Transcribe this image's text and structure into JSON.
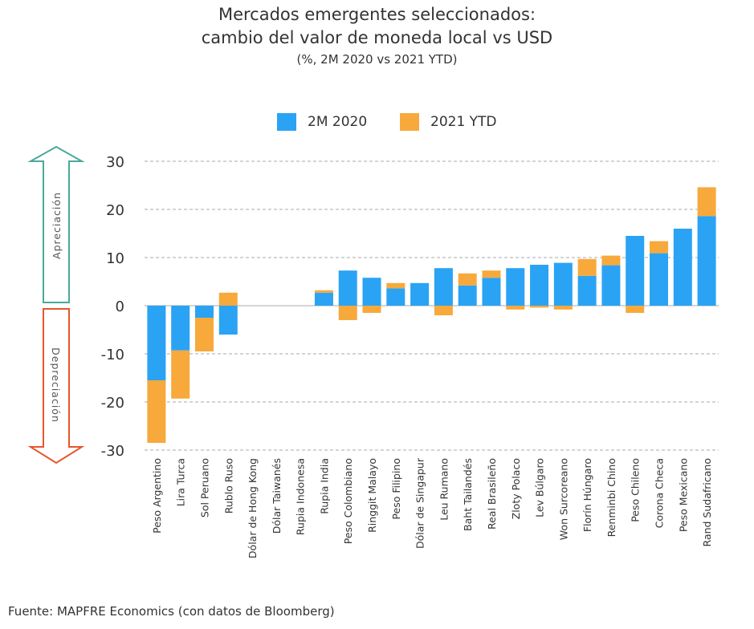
{
  "title": {
    "line1": "Mercados emergentes seleccionados:",
    "line2": "cambio del valor de moneda local vs USD",
    "line3": "(%, 2M 2020 vs 2021 YTD)"
  },
  "source": "Fuente: MAPFRE Economics (con datos de Bloomberg)",
  "arrows": {
    "up_label": "Apreciación",
    "down_label": "Depreciación",
    "up_color": "#4aa99a",
    "down_color": "#e8552b"
  },
  "chart_data": {
    "type": "bar",
    "stacked": true,
    "categories": [
      "Peso Argentino",
      "Lira Turca",
      "Sol Peruano",
      "Rublo Ruso",
      "Dólar de Hong Kong",
      "Dólar Taiwanés",
      "Rupia Indonesa",
      "Rupia India",
      "Peso Colombiano",
      "Ringgit Malayo",
      "Peso Filipino",
      "Dólar de Singapur",
      "Leu Rumano",
      "Baht Tailandés",
      "Real Brasileño",
      "Zloty Polaco",
      "Lev Búlgaro",
      "Won Surcoreano",
      "Florín Húngaro",
      "Renminbi Chino",
      "Peso Chileno",
      "Corona Checa",
      "Peso Mexicano",
      "Rand Sudafricano"
    ],
    "series": [
      {
        "name": "2M 2020",
        "color": "#2aa3f4",
        "values": [
          -15.5,
          -9.3,
          -2.5,
          -6.0,
          0,
          0,
          0,
          2.7,
          7.3,
          5.8,
          3.6,
          4.7,
          7.8,
          4.2,
          5.8,
          7.8,
          8.5,
          8.9,
          6.2,
          8.4,
          14.5,
          10.9,
          16.0,
          18.6
        ]
      },
      {
        "name": "2021 YTD",
        "color": "#f7a93b",
        "values": [
          -13.0,
          -10.0,
          -7.0,
          2.7,
          0,
          0,
          0,
          0.5,
          -3.0,
          -1.5,
          1.1,
          0,
          -2.0,
          2.5,
          1.5,
          -0.8,
          -0.4,
          -0.8,
          3.5,
          2.0,
          -1.5,
          2.5,
          0,
          6.0
        ]
      }
    ],
    "ylim": [
      -30,
      30
    ],
    "yticks": [
      -30,
      -20,
      -10,
      0,
      10,
      20,
      30
    ],
    "grid": true,
    "legend": "top-center"
  }
}
